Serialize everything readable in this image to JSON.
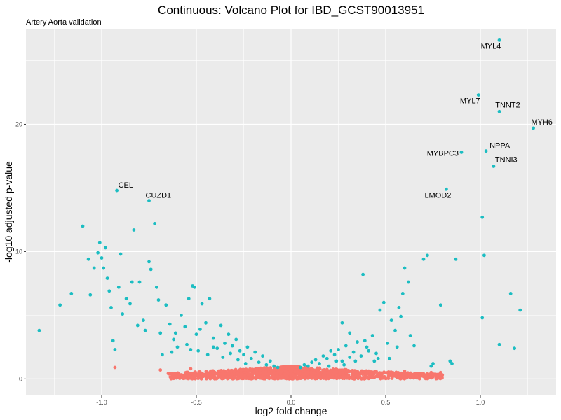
{
  "chart_data": {
    "type": "scatter",
    "title": "Continuous: Volcano Plot for IBD_GCST90013951",
    "subtitle": "Artery Aorta validation",
    "xlabel": "log2 fold change",
    "ylabel": "-log10 adjusted p-value",
    "xlim": [
      -1.4,
      1.4
    ],
    "ylim": [
      -1.3,
      27.5
    ],
    "x_ticks": [
      {
        "value": -1.0,
        "label": "-1.0"
      },
      {
        "value": -0.5,
        "label": "-0.5"
      },
      {
        "value": 0.0,
        "label": "0.0"
      },
      {
        "value": 0.5,
        "label": "0.5"
      },
      {
        "value": 1.0,
        "label": "1.0"
      }
    ],
    "y_ticks": [
      {
        "value": 0,
        "label": "0"
      },
      {
        "value": 10,
        "label": "10"
      },
      {
        "value": 20,
        "label": "20"
      }
    ],
    "grid": true,
    "legend": "none",
    "colors": {
      "significant": "#1cbdc2",
      "not_significant": "#f8766d",
      "panel": "#ebebeb",
      "grid": "#ffffff"
    },
    "labeled_points": [
      {
        "label": "MYL4",
        "x": 1.1,
        "y": 26.6
      },
      {
        "label": "MYL7",
        "x": 0.99,
        "y": 22.3
      },
      {
        "label": "TNNT2",
        "x": 1.1,
        "y": 21.0
      },
      {
        "label": "MYH6",
        "x": 1.28,
        "y": 19.7
      },
      {
        "label": "NPPA",
        "x": 1.03,
        "y": 17.9
      },
      {
        "label": "MYBPC3",
        "x": 0.9,
        "y": 17.8
      },
      {
        "label": "TNNI3",
        "x": 1.07,
        "y": 16.7
      },
      {
        "label": "LMOD2",
        "x": 0.82,
        "y": 14.9
      },
      {
        "label": "CEL",
        "x": -0.92,
        "y": 14.8
      },
      {
        "label": "CUZD1",
        "x": -0.75,
        "y": 14.0
      }
    ],
    "significant_points": [
      [
        -1.33,
        3.8
      ],
      [
        -1.22,
        5.8
      ],
      [
        -1.16,
        6.7
      ],
      [
        -1.1,
        12.0
      ],
      [
        -1.07,
        9.4
      ],
      [
        -1.06,
        6.6
      ],
      [
        -1.04,
        8.7
      ],
      [
        -1.02,
        9.9
      ],
      [
        -1.01,
        10.7
      ],
      [
        -1.0,
        9.5
      ],
      [
        -0.99,
        8.7
      ],
      [
        -0.98,
        10.3
      ],
      [
        -0.97,
        7.9
      ],
      [
        -0.96,
        6.9
      ],
      [
        -0.95,
        5.6
      ],
      [
        -0.94,
        3.0
      ],
      [
        -0.93,
        2.3
      ],
      [
        -0.91,
        7.2
      ],
      [
        -0.9,
        9.8
      ],
      [
        -0.89,
        5.1
      ],
      [
        -0.87,
        6.3
      ],
      [
        -0.85,
        5.9
      ],
      [
        -0.84,
        7.6
      ],
      [
        -0.83,
        11.7
      ],
      [
        -0.81,
        4.2
      ],
      [
        -0.8,
        7.6
      ],
      [
        -0.78,
        4.6
      ],
      [
        -0.77,
        3.8
      ],
      [
        -0.75,
        9.2
      ],
      [
        -0.74,
        8.6
      ],
      [
        -0.72,
        12.2
      ],
      [
        -0.71,
        7.2
      ],
      [
        -0.7,
        6.2
      ],
      [
        -0.69,
        3.6
      ],
      [
        -0.68,
        1.9
      ],
      [
        -0.66,
        5.8
      ],
      [
        -0.64,
        4.3
      ],
      [
        -0.62,
        3.1
      ],
      [
        -0.6,
        2.5
      ],
      [
        -0.58,
        5.0
      ],
      [
        -0.56,
        4.1
      ],
      [
        -0.54,
        6.3
      ],
      [
        -0.52,
        7.3
      ],
      [
        -0.51,
        7.2
      ],
      [
        -0.5,
        3.5
      ],
      [
        -0.49,
        2.2
      ],
      [
        -0.47,
        5.9
      ],
      [
        -0.45,
        4.4
      ],
      [
        -0.43,
        6.3
      ],
      [
        -0.41,
        3.2
      ],
      [
        -0.39,
        2.4
      ],
      [
        -0.37,
        4.2
      ],
      [
        -0.35,
        2.8
      ],
      [
        -0.33,
        3.5
      ],
      [
        -0.31,
        2.6
      ],
      [
        -0.29,
        3.1
      ],
      [
        -0.27,
        2.2
      ],
      [
        -0.25,
        1.9
      ],
      [
        -0.23,
        2.5
      ],
      [
        -0.21,
        1.6
      ],
      [
        -0.19,
        2.1
      ],
      [
        -0.17,
        1.3
      ],
      [
        -0.15,
        1.8
      ],
      [
        -0.13,
        1.1
      ],
      [
        -0.11,
        1.4
      ],
      [
        -0.09,
        1.0
      ],
      [
        -0.07,
        0.9
      ],
      [
        -0.28,
        1.5
      ],
      [
        -0.36,
        1.7
      ],
      [
        -0.44,
        1.9
      ],
      [
        -0.55,
        2.7
      ],
      [
        -0.63,
        2.1
      ],
      [
        0.05,
        0.9
      ],
      [
        0.07,
        1.1
      ],
      [
        0.09,
        1.0
      ],
      [
        0.11,
        1.3
      ],
      [
        0.13,
        1.5
      ],
      [
        0.15,
        1.2
      ],
      [
        0.17,
        1.8
      ],
      [
        0.19,
        1.6
      ],
      [
        0.21,
        2.2
      ],
      [
        0.23,
        1.9
      ],
      [
        0.25,
        2.3
      ],
      [
        0.27,
        1.4
      ],
      [
        0.29,
        2.6
      ],
      [
        0.31,
        1.7
      ],
      [
        0.33,
        2.1
      ],
      [
        0.35,
        2.9
      ],
      [
        0.37,
        1.8
      ],
      [
        0.39,
        3.0
      ],
      [
        0.38,
        8.2
      ],
      [
        0.41,
        2.2
      ],
      [
        0.43,
        3.4
      ],
      [
        0.45,
        2.0
      ],
      [
        0.47,
        5.4
      ],
      [
        0.49,
        6.0
      ],
      [
        0.51,
        2.8
      ],
      [
        0.53,
        4.6
      ],
      [
        0.55,
        3.8
      ],
      [
        0.57,
        5.6
      ],
      [
        0.58,
        4.9
      ],
      [
        0.59,
        6.7
      ],
      [
        0.6,
        8.7
      ],
      [
        0.62,
        7.6
      ],
      [
        0.63,
        3.4
      ],
      [
        0.65,
        2.6
      ],
      [
        0.7,
        9.4
      ],
      [
        0.72,
        9.7
      ],
      [
        0.74,
        1.0
      ],
      [
        0.75,
        1.2
      ],
      [
        0.79,
        5.8
      ],
      [
        0.84,
        1.4
      ],
      [
        0.85,
        1.2
      ],
      [
        0.87,
        9.4
      ],
      [
        1.01,
        12.7
      ],
      [
        1.01,
        4.8
      ],
      [
        1.02,
        9.7
      ],
      [
        1.1,
        2.7
      ],
      [
        1.16,
        6.7
      ],
      [
        1.18,
        2.4
      ],
      [
        1.21,
        5.4
      ],
      [
        0.27,
        4.4
      ],
      [
        0.31,
        3.6
      ],
      [
        0.44,
        1.4
      ],
      [
        0.52,
        1.6
      ],
      [
        0.56,
        2.5
      ],
      [
        -0.24,
        1.2
      ],
      [
        -0.32,
        2.0
      ],
      [
        -0.41,
        2.5
      ],
      [
        -0.48,
        3.9
      ],
      [
        -0.53,
        2.3
      ],
      [
        -0.61,
        3.6
      ],
      [
        0.34,
        1.4
      ],
      [
        0.4,
        2.5
      ],
      [
        0.46,
        1.6
      ],
      [
        0.2,
        1.0
      ],
      [
        0.24,
        1.4
      ],
      [
        0.28,
        1.1
      ]
    ]
  }
}
